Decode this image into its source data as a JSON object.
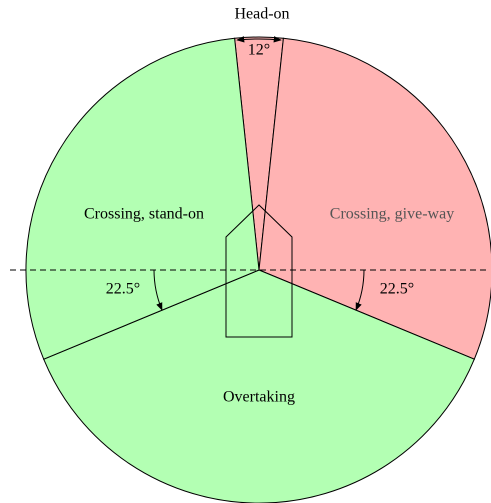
{
  "sectors": {
    "head_on": "Head-on",
    "stand_on": "Crossing, stand-on",
    "give_way": "Crossing, give-way",
    "overtaking": "Overtaking"
  },
  "angles": {
    "head_on": "12°",
    "left": "22.5°",
    "right": "22.5°"
  }
}
